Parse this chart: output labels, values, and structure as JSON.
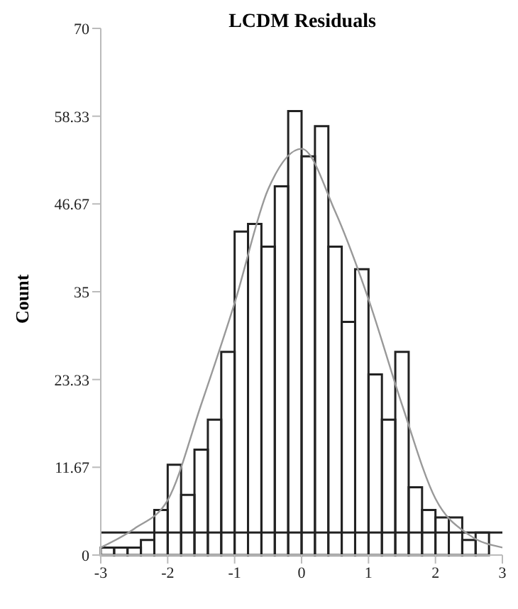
{
  "chart_data": {
    "type": "histogram",
    "title": "LCDM Residuals",
    "ylabel": "Count",
    "color": "#222222",
    "bins": [
      -3.0,
      -2.8,
      -2.6,
      -2.4,
      -2.2,
      -2.0,
      -1.8,
      -1.6,
      -1.4,
      -1.2,
      -1.0,
      -0.8,
      -0.6,
      -0.4,
      -0.2,
      0,
      0.2,
      0.4,
      0.6,
      0.8,
      1.0,
      1.2,
      1.4,
      1.6,
      1.8,
      2.0,
      2.2,
      2.4,
      2.6,
      2.8
    ],
    "values": [
      1,
      1,
      1,
      2,
      6,
      12,
      8,
      14,
      18,
      27,
      43,
      44,
      41,
      49,
      59,
      53,
      57,
      41,
      31,
      38,
      24,
      18,
      27,
      9,
      6,
      5,
      5,
      2,
      3
    ],
    "series": [
      {
        "type": "line",
        "color": "#999999",
        "x": [
          -3,
          -2.5,
          -2,
          -1.5,
          -1,
          -0.5,
          0,
          0.5,
          1,
          1.5,
          2,
          2.5,
          3
        ],
        "values": [
          1,
          3.5,
          7.3,
          20,
          33.5,
          48.6,
          54,
          45.7,
          34,
          20,
          7.5,
          2.7,
          1
        ]
      }
    ],
    "ref_lines": [
      {
        "axis": "y",
        "value": 3,
        "color": "#222222"
      }
    ],
    "xlim": [
      -3,
      3
    ],
    "xticks": [
      -3,
      -2,
      -1,
      0,
      1,
      2,
      3
    ],
    "ylim": [
      0,
      70
    ],
    "yticks": [
      0,
      {
        "value": 11.67,
        "label": "11.67"
      },
      {
        "value": 23.33,
        "label": "23.33"
      },
      35,
      {
        "value": 46.67,
        "label": "46.67"
      },
      {
        "value": 58.33,
        "label": "58.33"
      },
      70
    ],
    "grid": false,
    "legend": false
  }
}
